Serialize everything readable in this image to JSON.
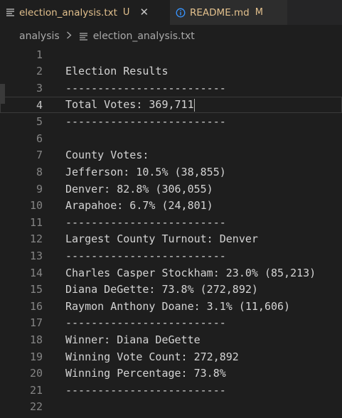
{
  "tabs": [
    {
      "name": "election_analysis.txt",
      "status": "U",
      "close": "✕",
      "icon": "text-lines-icon",
      "active": true
    },
    {
      "name": "README.md",
      "status": "M",
      "icon": "info-circle-icon",
      "active": false
    }
  ],
  "breadcrumb": {
    "folder": "analysis",
    "file": "election_analysis.txt"
  },
  "editor": {
    "current_line": 4,
    "lines": [
      {
        "n": "1",
        "text": ""
      },
      {
        "n": "2",
        "text": "Election Results"
      },
      {
        "n": "3",
        "text": "-------------------------"
      },
      {
        "n": "4",
        "text": "Total Votes: 369,711"
      },
      {
        "n": "5",
        "text": "-------------------------"
      },
      {
        "n": "6",
        "text": ""
      },
      {
        "n": "7",
        "text": "County Votes:"
      },
      {
        "n": "8",
        "text": "Jefferson: 10.5% (38,855)"
      },
      {
        "n": "9",
        "text": "Denver: 82.8% (306,055)"
      },
      {
        "n": "10",
        "text": "Arapahoe: 6.7% (24,801)"
      },
      {
        "n": "11",
        "text": "-------------------------"
      },
      {
        "n": "12",
        "text": "Largest County Turnout: Denver"
      },
      {
        "n": "13",
        "text": "-------------------------"
      },
      {
        "n": "14",
        "text": "Charles Casper Stockham: 23.0% (85,213)"
      },
      {
        "n": "15",
        "text": "Diana DeGette: 73.8% (272,892)"
      },
      {
        "n": "16",
        "text": "Raymon Anthony Doane: 3.1% (11,606)"
      },
      {
        "n": "17",
        "text": "-------------------------"
      },
      {
        "n": "18",
        "text": "Winner: Diana DeGette"
      },
      {
        "n": "19",
        "text": "Winning Vote Count: 272,892"
      },
      {
        "n": "20",
        "text": "Winning Percentage: 73.8%"
      },
      {
        "n": "21",
        "text": "-------------------------"
      },
      {
        "n": "22",
        "text": ""
      }
    ]
  }
}
